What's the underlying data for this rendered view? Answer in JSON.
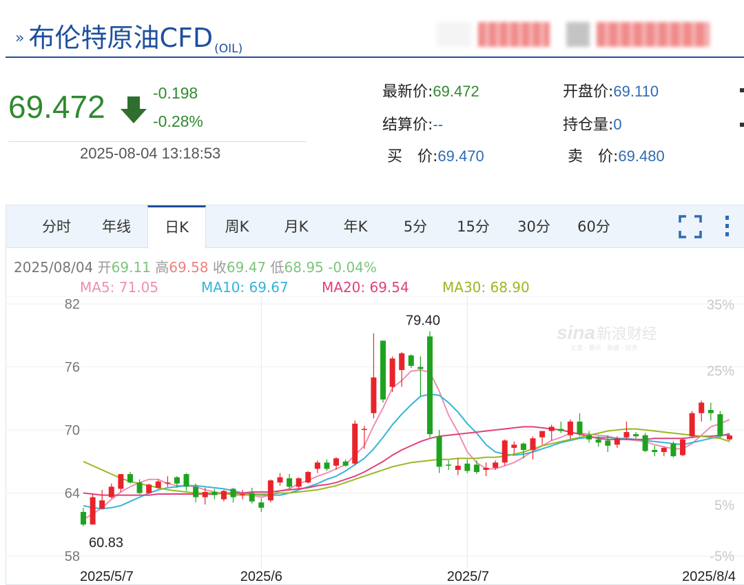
{
  "header": {
    "title": "布伦特原油CFD",
    "title_suffix": "(OIL)",
    "blurred_colors": [
      "#f08a8a",
      "#bdbdbd",
      "#f08a8a"
    ]
  },
  "quote": {
    "price": "69.472",
    "change": "-0.198",
    "change_pct": "-0.28%",
    "time": "2025-08-04 13:18:53",
    "direction_icon": "down-arrow-icon",
    "fields": [
      {
        "label": "最新价:",
        "value": "69.472",
        "color": "green"
      },
      {
        "label": "开盘价:",
        "value": "69.110",
        "color": "blue"
      },
      {
        "label": "结算价:",
        "value": "--",
        "color": "blue"
      },
      {
        "label": "持仓量:",
        "value": "0",
        "color": "blue"
      },
      {
        "label": "买　价:",
        "value": "69.470",
        "color": "blue"
      },
      {
        "label": "卖　价:",
        "value": "69.480",
        "color": "blue"
      }
    ]
  },
  "tabs": [
    "分时",
    "年线",
    "日K",
    "周K",
    "月K",
    "年K",
    "5分",
    "15分",
    "30分",
    "60分"
  ],
  "active_tab": "日K",
  "controls": {
    "fullscreen_icon": "fullscreen-icon",
    "more_icon": "more-vertical-icon"
  },
  "info_line": {
    "date": "2025/08/04",
    "open_label": "开",
    "open": "69.11",
    "high_label": "高",
    "high": "69.58",
    "close_label": "收",
    "close": "69.47",
    "low_label": "低",
    "low": "68.95",
    "change": "-0.04%"
  },
  "ma_line": [
    {
      "label": "MA5:",
      "value": "71.05",
      "color": "#ef8fb3"
    },
    {
      "label": "MA10:",
      "value": "69.67",
      "color": "#33b5d6"
    },
    {
      "label": "MA20:",
      "value": "69.54",
      "color": "#e0407a"
    },
    {
      "label": "MA30:",
      "value": "68.90",
      "color": "#9ab822"
    }
  ],
  "watermark": {
    "logo": "sina",
    "text": "新浪财经",
    "sub": "文章 · 要讯 · 数据 · 财务"
  },
  "chart_data": {
    "type": "candlestick",
    "y_ticks": [
      "82",
      "76",
      "70",
      "64",
      "58"
    ],
    "y_pct_ticks": [
      "35%",
      "25%",
      "5%",
      "-5%"
    ],
    "x_ticks": [
      "2025/5/7",
      "2025/6",
      "2025/7",
      "2025/8/4"
    ],
    "ylim": [
      58,
      82
    ],
    "max_label": "79.40",
    "min_label": "60.83",
    "colors": {
      "up": "#e8242b",
      "down": "#1fa31f"
    },
    "candles": [
      {
        "o": 62.2,
        "h": 62.6,
        "l": 60.83,
        "c": 61.0
      },
      {
        "o": 61.0,
        "h": 63.9,
        "l": 61.0,
        "c": 63.6
      },
      {
        "o": 62.5,
        "h": 64.3,
        "l": 62.5,
        "c": 63.3
      },
      {
        "o": 63.6,
        "h": 64.9,
        "l": 63.5,
        "c": 64.6
      },
      {
        "o": 64.4,
        "h": 65.8,
        "l": 64.1,
        "c": 65.8
      },
      {
        "o": 65.8,
        "h": 66.0,
        "l": 64.9,
        "c": 65.0
      },
      {
        "o": 65.0,
        "h": 65.3,
        "l": 63.9,
        "c": 64.0
      },
      {
        "o": 64.0,
        "h": 64.9,
        "l": 63.9,
        "c": 64.8
      },
      {
        "o": 64.5,
        "h": 65.3,
        "l": 64.4,
        "c": 65.1
      },
      {
        "o": 64.9,
        "h": 65.6,
        "l": 64.6,
        "c": 65.0
      },
      {
        "o": 65.5,
        "h": 65.6,
        "l": 64.5,
        "c": 64.9
      },
      {
        "o": 65.8,
        "h": 65.9,
        "l": 64.2,
        "c": 64.6
      },
      {
        "o": 64.6,
        "h": 64.9,
        "l": 63.1,
        "c": 63.6
      },
      {
        "o": 63.6,
        "h": 64.5,
        "l": 62.9,
        "c": 64.1
      },
      {
        "o": 64.1,
        "h": 64.4,
        "l": 63.4,
        "c": 63.8
      },
      {
        "o": 63.4,
        "h": 64.3,
        "l": 63.2,
        "c": 64.2
      },
      {
        "o": 64.4,
        "h": 64.5,
        "l": 63.1,
        "c": 63.6
      },
      {
        "o": 63.8,
        "h": 64.3,
        "l": 63.4,
        "c": 63.9
      },
      {
        "o": 64.0,
        "h": 64.5,
        "l": 63.0,
        "c": 63.2
      },
      {
        "o": 63.1,
        "h": 63.5,
        "l": 62.2,
        "c": 62.6
      },
      {
        "o": 63.3,
        "h": 65.3,
        "l": 63.1,
        "c": 65.2
      },
      {
        "o": 65.0,
        "h": 65.9,
        "l": 64.7,
        "c": 65.5
      },
      {
        "o": 65.4,
        "h": 65.8,
        "l": 64.3,
        "c": 64.6
      },
      {
        "o": 64.6,
        "h": 65.5,
        "l": 64.4,
        "c": 65.4
      },
      {
        "o": 65.0,
        "h": 66.1,
        "l": 64.9,
        "c": 66.0
      },
      {
        "o": 66.3,
        "h": 67.1,
        "l": 65.9,
        "c": 66.9
      },
      {
        "o": 66.9,
        "h": 67.2,
        "l": 66.1,
        "c": 66.3
      },
      {
        "o": 66.6,
        "h": 67.4,
        "l": 66.2,
        "c": 67.3
      },
      {
        "o": 67.0,
        "h": 67.2,
        "l": 66.5,
        "c": 66.6
      },
      {
        "o": 66.8,
        "h": 70.9,
        "l": 66.6,
        "c": 70.6
      },
      {
        "o": 70.0,
        "h": 70.4,
        "l": 68.2,
        "c": 70.1
      },
      {
        "o": 71.6,
        "h": 79.2,
        "l": 71.1,
        "c": 75.0
      },
      {
        "o": 78.5,
        "h": 78.5,
        "l": 72.6,
        "c": 72.9
      },
      {
        "o": 74.1,
        "h": 77.0,
        "l": 73.6,
        "c": 76.8
      },
      {
        "o": 75.7,
        "h": 77.4,
        "l": 74.1,
        "c": 77.3
      },
      {
        "o": 77.1,
        "h": 77.2,
        "l": 75.9,
        "c": 76.1
      },
      {
        "o": 76.0,
        "h": 77.0,
        "l": 73.2,
        "c": 75.8
      },
      {
        "o": 78.9,
        "h": 79.4,
        "l": 69.3,
        "c": 69.6
      },
      {
        "o": 69.4,
        "h": 70.0,
        "l": 65.9,
        "c": 66.5
      },
      {
        "o": 66.7,
        "h": 67.1,
        "l": 66.2,
        "c": 66.6
      },
      {
        "o": 66.2,
        "h": 67.3,
        "l": 65.7,
        "c": 66.6
      },
      {
        "o": 66.8,
        "h": 67.2,
        "l": 65.9,
        "c": 66.1
      },
      {
        "o": 66.7,
        "h": 67.1,
        "l": 65.8,
        "c": 66.0
      },
      {
        "o": 66.2,
        "h": 66.9,
        "l": 65.6,
        "c": 66.4
      },
      {
        "o": 66.4,
        "h": 67.1,
        "l": 66.2,
        "c": 66.9
      },
      {
        "o": 66.9,
        "h": 69.1,
        "l": 66.6,
        "c": 69.0
      },
      {
        "o": 68.3,
        "h": 68.9,
        "l": 67.7,
        "c": 68.6
      },
      {
        "o": 68.7,
        "h": 68.8,
        "l": 67.3,
        "c": 68.1
      },
      {
        "o": 68.1,
        "h": 69.4,
        "l": 67.2,
        "c": 69.2
      },
      {
        "o": 69.3,
        "h": 69.8,
        "l": 68.6,
        "c": 69.9
      },
      {
        "o": 69.9,
        "h": 70.5,
        "l": 69.0,
        "c": 70.3
      },
      {
        "o": 70.1,
        "h": 70.8,
        "l": 69.7,
        "c": 69.9
      },
      {
        "o": 69.5,
        "h": 71.0,
        "l": 69.1,
        "c": 70.8
      },
      {
        "o": 70.8,
        "h": 71.6,
        "l": 69.4,
        "c": 69.6
      },
      {
        "o": 69.5,
        "h": 69.9,
        "l": 68.8,
        "c": 69.1
      },
      {
        "o": 69.1,
        "h": 69.4,
        "l": 68.4,
        "c": 68.8
      },
      {
        "o": 69.0,
        "h": 69.5,
        "l": 67.9,
        "c": 68.5
      },
      {
        "o": 68.6,
        "h": 69.4,
        "l": 68.3,
        "c": 69.2
      },
      {
        "o": 69.3,
        "h": 70.8,
        "l": 69.1,
        "c": 69.8
      },
      {
        "o": 69.6,
        "h": 69.8,
        "l": 69.2,
        "c": 69.4
      },
      {
        "o": 69.5,
        "h": 69.7,
        "l": 67.9,
        "c": 68.0
      },
      {
        "o": 68.1,
        "h": 68.5,
        "l": 67.5,
        "c": 67.9
      },
      {
        "o": 67.9,
        "h": 68.4,
        "l": 67.5,
        "c": 68.3
      },
      {
        "o": 68.7,
        "h": 68.9,
        "l": 67.4,
        "c": 67.5
      },
      {
        "o": 67.6,
        "h": 69.2,
        "l": 67.5,
        "c": 69.1
      },
      {
        "o": 69.4,
        "h": 71.8,
        "l": 69.3,
        "c": 71.6
      },
      {
        "o": 71.6,
        "h": 72.8,
        "l": 70.8,
        "c": 72.6
      },
      {
        "o": 71.9,
        "h": 72.6,
        "l": 70.9,
        "c": 71.6
      },
      {
        "o": 71.5,
        "h": 71.8,
        "l": 69.2,
        "c": 69.5
      },
      {
        "o": 69.1,
        "h": 69.6,
        "l": 68.95,
        "c": 69.47
      }
    ],
    "ma": {
      "MA5": [
        61.5,
        62.0,
        62.6,
        63.4,
        64.1,
        64.6,
        65.0,
        65.3,
        65.3,
        64.9,
        64.7,
        64.7,
        64.6,
        64.3,
        64.1,
        64.0,
        63.8,
        63.8,
        63.8,
        63.6,
        63.8,
        64.2,
        64.4,
        64.9,
        65.2,
        65.6,
        65.9,
        66.3,
        66.7,
        67.6,
        68.5,
        70.4,
        72.1,
        74.0,
        74.7,
        75.6,
        75.7,
        75.5,
        73.7,
        71.4,
        69.8,
        67.9,
        66.9,
        66.3,
        66.3,
        66.6,
        66.9,
        67.4,
        68.0,
        68.5,
        69.0,
        69.3,
        69.7,
        69.7,
        69.6,
        69.5,
        69.4,
        69.2,
        69.1,
        69.0,
        68.9,
        68.6,
        68.4,
        68.2,
        68.2,
        68.7,
        69.5,
        70.3,
        70.6,
        71.0
      ],
      "MA10": [
        62.8,
        62.6,
        62.5,
        62.6,
        62.8,
        63.2,
        63.6,
        64.0,
        64.3,
        64.5,
        64.6,
        64.7,
        64.7,
        64.6,
        64.5,
        64.4,
        64.2,
        64.0,
        63.9,
        63.8,
        63.8,
        63.8,
        64.0,
        64.3,
        64.6,
        64.9,
        65.3,
        65.6,
        66.1,
        66.7,
        67.3,
        68.2,
        69.3,
        70.5,
        71.5,
        72.4,
        73.2,
        73.4,
        73.3,
        72.6,
        71.7,
        70.6,
        69.7,
        68.6,
        67.9,
        67.7,
        67.6,
        67.7,
        67.9,
        68.2,
        68.5,
        68.8,
        69.0,
        69.2,
        69.3,
        69.3,
        69.3,
        69.2,
        69.2,
        69.1,
        69.0,
        68.9,
        68.8,
        68.7,
        68.6,
        68.8,
        69.0,
        69.2,
        69.4,
        69.67
      ],
      "MA20": [
        64.0,
        63.9,
        63.8,
        63.8,
        63.8,
        63.8,
        63.8,
        63.8,
        63.9,
        63.9,
        63.9,
        63.9,
        63.9,
        63.9,
        63.9,
        64.0,
        64.0,
        64.0,
        64.1,
        64.1,
        64.1,
        64.2,
        64.3,
        64.4,
        64.5,
        64.7,
        64.8,
        65.0,
        65.3,
        65.6,
        66.0,
        66.5,
        67.0,
        67.6,
        68.1,
        68.5,
        68.9,
        69.2,
        69.4,
        69.5,
        69.6,
        69.7,
        69.8,
        69.9,
        70.0,
        70.1,
        70.2,
        70.3,
        70.3,
        70.2,
        70.1,
        70.0,
        69.8,
        69.6,
        69.4,
        69.2,
        69.1,
        69.1,
        69.1,
        69.1,
        69.1,
        69.2,
        69.2,
        69.2,
        69.2,
        69.3,
        69.4,
        69.4,
        69.5,
        69.54
      ],
      "MA30": [
        67.0,
        66.6,
        66.2,
        65.8,
        65.4,
        65.1,
        64.9,
        64.7,
        64.5,
        64.3,
        64.2,
        64.1,
        64.0,
        64.0,
        64.0,
        63.9,
        63.9,
        63.9,
        63.9,
        63.9,
        63.9,
        64.0,
        64.0,
        64.1,
        64.2,
        64.3,
        64.5,
        64.7,
        65.0,
        65.3,
        65.6,
        65.9,
        66.2,
        66.5,
        66.7,
        66.9,
        67.0,
        67.1,
        67.2,
        67.2,
        67.3,
        67.3,
        67.3,
        67.4,
        67.4,
        67.5,
        67.7,
        67.9,
        68.2,
        68.5,
        68.7,
        68.9,
        69.1,
        69.3,
        69.5,
        69.7,
        69.9,
        70.0,
        70.1,
        70.1,
        70.0,
        69.9,
        69.8,
        69.7,
        69.6,
        69.5,
        69.4,
        69.3,
        69.2,
        68.9
      ]
    },
    "ma_colors": {
      "MA5": "#ef8fb3",
      "MA10": "#33b5d6",
      "MA20": "#e0407a",
      "MA30": "#9ab822"
    }
  }
}
